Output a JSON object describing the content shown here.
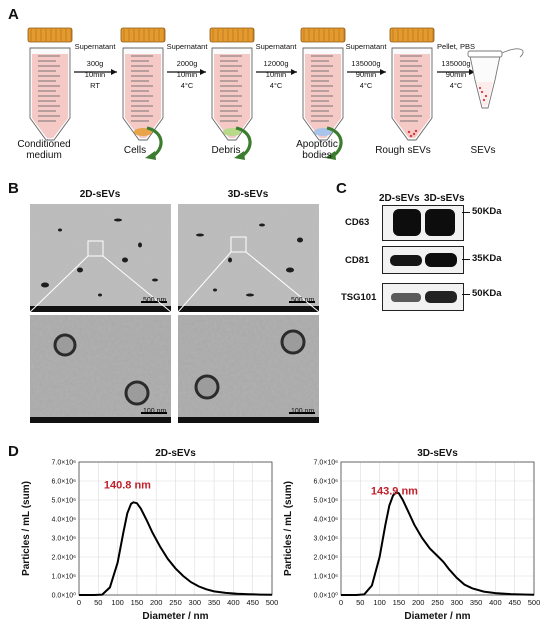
{
  "panels": {
    "A": "A",
    "B": "B",
    "C": "C",
    "D": "D"
  },
  "panel_a": {
    "steps": [
      {
        "lines": [
          "Supernatant",
          "300g",
          "10min",
          "RT"
        ]
      },
      {
        "lines": [
          "Supernatant",
          "2000g",
          "10min",
          "4°C"
        ]
      },
      {
        "lines": [
          "Supernatant",
          "12000g",
          "10min",
          "4°C"
        ]
      },
      {
        "lines": [
          "Supernatant",
          "135000g",
          "90min",
          "4°C"
        ]
      },
      {
        "lines": [
          "Pellet, PBS",
          "135000g",
          "90min",
          "4°C"
        ]
      }
    ],
    "tube_labels": [
      "Conditioned\nmedium",
      "Cells",
      "Debris",
      "Apoptotic\nbodies",
      "Rough sEVs",
      "SEVs"
    ],
    "colors": {
      "cap": "#e39a2e",
      "tube_fill": "#f4c9c6",
      "arrow": "#3b7d2e",
      "pellet_cells": "#e9a44a",
      "pellet_debris": "#b8d98a",
      "pellet_apoptotic": "#a9c4ea",
      "dots": "#d9363e"
    }
  },
  "panel_b": {
    "columns": [
      "2D-sEVs",
      "3D-sEVs"
    ],
    "scale_top": "500 nm",
    "scale_bottom": "100 nm"
  },
  "panel_c": {
    "columns": [
      "2D-sEVs",
      "3D-sEVs"
    ],
    "proteins": [
      "CD63",
      "CD81",
      "TSG101"
    ],
    "markers": [
      "50KDa",
      "35KDa",
      "50KDa"
    ]
  },
  "chart_data": [
    {
      "type": "line",
      "title": "2D-sEVs",
      "xlabel": "Diameter / nm",
      "ylabel": "Particles / mL (sum)",
      "annotation": "140.8 nm",
      "xlim": [
        0,
        500
      ],
      "ylim": [
        0,
        7000000
      ],
      "x_ticks": [
        "0",
        "50",
        "100",
        "150",
        "200",
        "250",
        "300",
        "350",
        "400",
        "450",
        "500"
      ],
      "y_ticks": [
        "0.0×10⁰",
        "1.0×10⁶",
        "2.0×10⁶",
        "3.0×10⁶",
        "4.0×10⁶",
        "5.0×10⁶",
        "6.0×10⁶",
        "7.0×10⁶"
      ],
      "grid": true,
      "series": [
        {
          "x": [
            0,
            40,
            60,
            80,
            100,
            115,
            125,
            135,
            141,
            150,
            160,
            175,
            190,
            210,
            230,
            250,
            270,
            290,
            310,
            330,
            350,
            380,
            410,
            440,
            470,
            500
          ],
          "y": [
            0,
            0,
            20000,
            400000,
            1700000,
            3300000,
            4300000,
            4800000,
            4880000,
            4830000,
            4550000,
            3950000,
            3300000,
            2550000,
            1900000,
            1400000,
            1000000,
            680000,
            450000,
            300000,
            190000,
            110000,
            70000,
            40000,
            20000,
            10000
          ]
        }
      ]
    },
    {
      "type": "line",
      "title": "3D-sEVs",
      "xlabel": "Diameter / nm",
      "ylabel": "Particles / mL (sum)",
      "annotation": "143.9 nm",
      "xlim": [
        0,
        500
      ],
      "ylim": [
        0,
        7000000
      ],
      "x_ticks": [
        "0",
        "50",
        "100",
        "150",
        "200",
        "250",
        "300",
        "350",
        "400",
        "450",
        "500"
      ],
      "y_ticks": [
        "0.0×10⁰",
        "1.0×10⁶",
        "2.0×10⁶",
        "3.0×10⁶",
        "4.0×10⁶",
        "5.0×10⁶",
        "6.0×10⁶",
        "7.0×10⁶"
      ],
      "grid": true,
      "series": [
        {
          "x": [
            0,
            40,
            60,
            80,
            100,
            115,
            125,
            135,
            144,
            150,
            160,
            175,
            190,
            210,
            230,
            250,
            265,
            280,
            300,
            320,
            340,
            370,
            400,
            440,
            470,
            500
          ],
          "y": [
            0,
            0,
            30000,
            500000,
            2000000,
            3700000,
            4700000,
            5250000,
            5400000,
            5350000,
            5000000,
            4350000,
            3700000,
            3000000,
            2450000,
            2050000,
            1750000,
            1350000,
            900000,
            550000,
            350000,
            180000,
            100000,
            50000,
            25000,
            10000
          ]
        }
      ]
    }
  ]
}
